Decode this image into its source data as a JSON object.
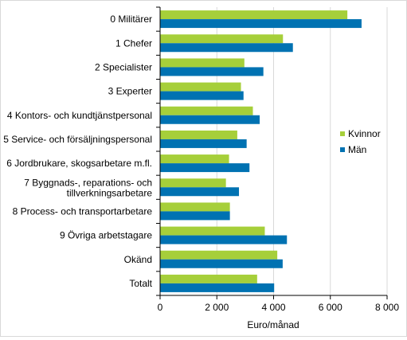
{
  "chart_data": {
    "type": "bar",
    "orientation": "horizontal",
    "categories": [
      "0 Militärer",
      "1 Chefer",
      "2 Specialister",
      "3 Experter",
      "4 Kontors- och kundtjänstpersonal",
      "5 Service- och försäljningspersonal",
      "6 Jordbrukare, skogsarbetare m.fl.",
      "7 Byggnads-, reparations- och tillverkningsarbetare",
      "8 Process- och transportarbetare",
      "9 Övriga arbetstagare",
      "Okänd",
      "Totalt"
    ],
    "series": [
      {
        "name": "Kvinnor",
        "color": "#a6cf3a",
        "values": [
          6600,
          4330,
          2970,
          2850,
          3270,
          2720,
          2430,
          2320,
          2460,
          3690,
          4130,
          3420
        ]
      },
      {
        "name": "Män",
        "color": "#0072b2",
        "values": [
          7100,
          4680,
          3640,
          2940,
          3510,
          3050,
          3150,
          2780,
          2460,
          4470,
          4320,
          4020
        ]
      }
    ],
    "xlabel": "Euro/månad",
    "ylabel": "",
    "xlim": [
      0,
      8000
    ],
    "xticks": [
      0,
      2000,
      4000,
      6000,
      8000
    ],
    "xtick_labels": [
      "0",
      "2 000",
      "4 000",
      "6 000",
      "8 000"
    ],
    "grid": true,
    "legend": "right"
  }
}
